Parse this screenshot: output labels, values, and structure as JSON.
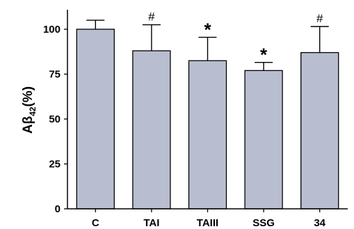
{
  "chart_data": {
    "type": "bar",
    "ylabel_main": "Aβ",
    "ylabel_sub": "42",
    "ylabel_suffix": "(%)",
    "ylim": [
      0,
      110
    ],
    "yticks": [
      0,
      25,
      50,
      75,
      100
    ],
    "categories": [
      "C",
      "TAI",
      "TAIII",
      "SSG",
      "34"
    ],
    "values": [
      100,
      88,
      82.5,
      77,
      87
    ],
    "errors": [
      5,
      14.5,
      13,
      4.5,
      14.5
    ],
    "annotations": [
      "",
      "#",
      "*",
      "*",
      "#"
    ],
    "bar_color": "#b9bdd0",
    "grid": false
  }
}
